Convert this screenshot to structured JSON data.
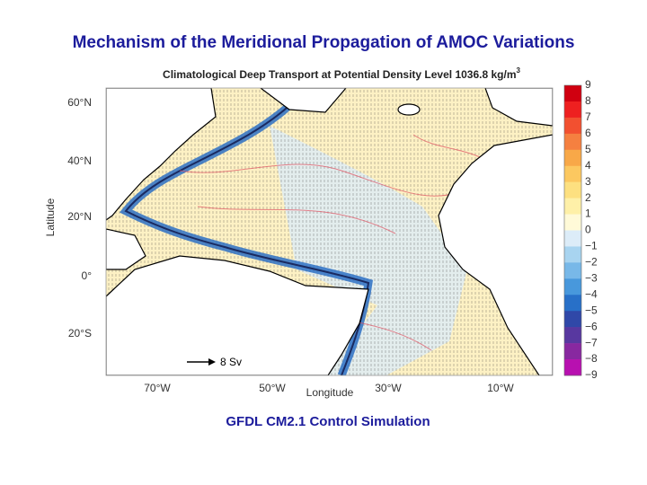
{
  "slide": {
    "title": "Mechanism of the Meridional Propagation of AMOC Variations",
    "caption": "GFDL CM2.1 Control Simulation"
  },
  "figure": {
    "title": "Climatological Deep Transport at Potential Density Level 1036.8 kg/m",
    "title_superscript": "3",
    "y_label": "Latitude",
    "x_label": "Longitude",
    "lat_ticks": [
      "60°N",
      "40°N",
      "20°N",
      "0°",
      "20°S"
    ],
    "lon_ticks": [
      "70°W",
      "50°W",
      "30°W",
      "10°W"
    ],
    "reference_vector": "8 Sv",
    "colorbar": {
      "labels": [
        "9",
        "8",
        "7",
        "6",
        "5",
        "4",
        "3",
        "2",
        "1",
        "0",
        "−1",
        "−2",
        "−3",
        "−4",
        "−5",
        "−6",
        "−7",
        "−8",
        "−9"
      ],
      "colors": [
        "#d00010",
        "#ee2020",
        "#f25030",
        "#f58040",
        "#f8a848",
        "#fcc860",
        "#fde080",
        "#fef0a8",
        "#fffad8",
        "#dcecf8",
        "#a8d4f0",
        "#78b8e8",
        "#4898dc",
        "#2870c8",
        "#3048a8",
        "#5838a0",
        "#8828a0",
        "#b810b0"
      ]
    }
  }
}
